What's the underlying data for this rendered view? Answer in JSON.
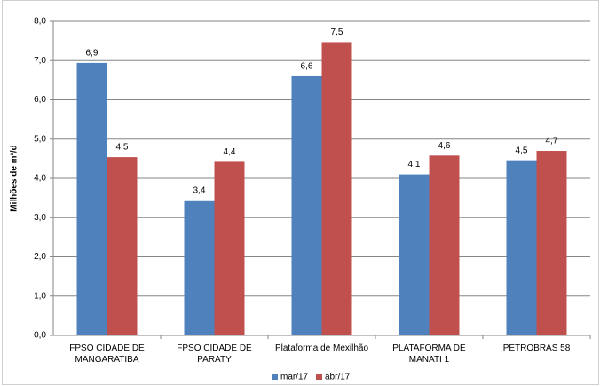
{
  "chart_data": {
    "type": "bar",
    "y_label": "Milhões de m³/d",
    "categories": [
      "FPSO CIDADE DE MANGARATIBA",
      "FPSO CIDADE DE PARATY",
      "Plataforma de Mexilhão",
      "PLATAFORMA DE MANATI 1",
      "PETROBRAS 58"
    ],
    "series": [
      {
        "name": "mar/17",
        "color": "#4f81bd",
        "values": [
          6.94,
          3.44,
          6.6,
          4.1,
          4.46
        ],
        "value_labels": [
          "6,9",
          "3,4",
          "6,6",
          "4,1",
          "4,5"
        ]
      },
      {
        "name": "abr/17",
        "color": "#c0504d",
        "values": [
          4.54,
          4.42,
          7.47,
          4.58,
          4.7
        ],
        "value_labels": [
          "4,5",
          "4,4",
          "7,5",
          "4,6",
          "4,7"
        ]
      }
    ],
    "ylim": [
      0,
      8
    ],
    "yticks": [
      {
        "value": 0,
        "label": "0,0"
      },
      {
        "value": 1,
        "label": "1,0"
      },
      {
        "value": 2,
        "label": "2,0"
      },
      {
        "value": 3,
        "label": "3,0"
      },
      {
        "value": 4,
        "label": "4,0"
      },
      {
        "value": 5,
        "label": "5,0"
      },
      {
        "value": 6,
        "label": "6,0"
      },
      {
        "value": 7,
        "label": "7,0"
      },
      {
        "value": 8,
        "label": "8,0"
      }
    ],
    "grid": true,
    "legend": "bottom"
  }
}
